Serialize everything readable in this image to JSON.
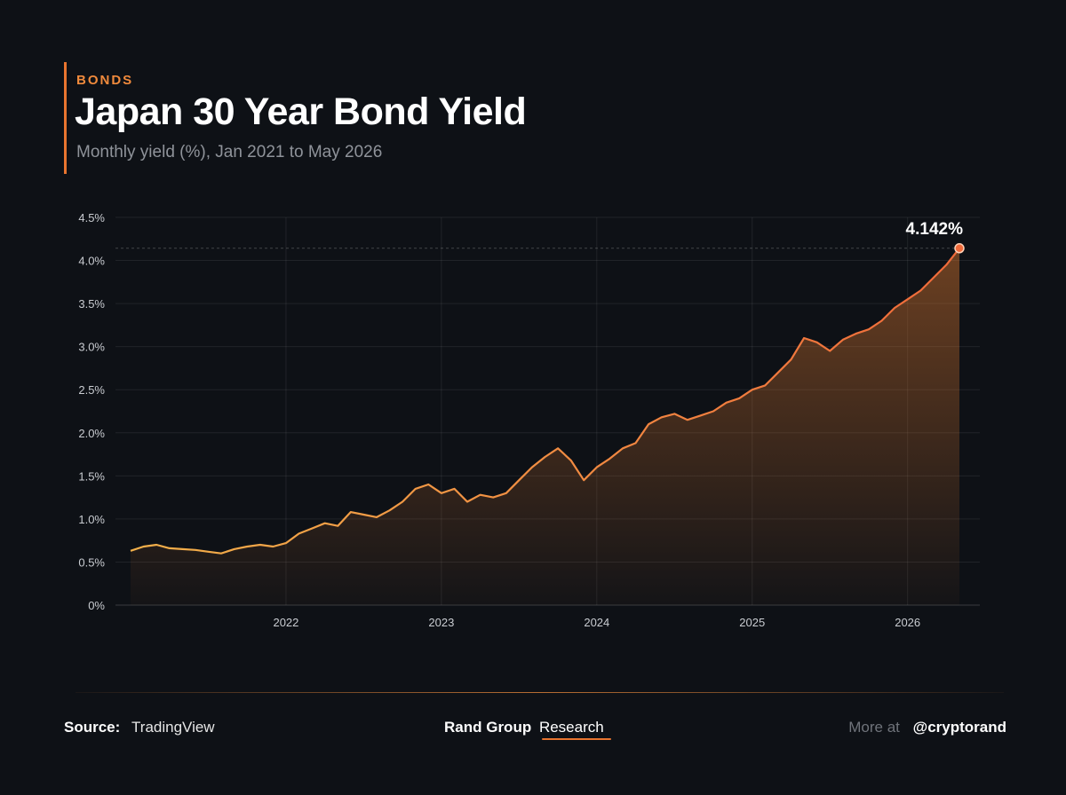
{
  "header": {
    "kicker": "BONDS",
    "title": "Japan 30 Year Bond Yield",
    "subtitle": "Monthly yield (%), Jan 2021 to May 2026"
  },
  "colors": {
    "background": "#0e1116",
    "accent": "#e8742f",
    "line_start": "#f2b04a",
    "line_end": "#f06a3a"
  },
  "chart_data": {
    "type": "area",
    "title": "Japan 30 Year Bond Yield",
    "subtitle": "Monthly yield (%), Jan 2021 to May 2026",
    "xlabel": "",
    "ylabel": "",
    "xlim": [
      "2021-01",
      "2026-05"
    ],
    "ylim": [
      0,
      4.5
    ],
    "y_ticks": [
      "0%",
      "0.5%",
      "1.0%",
      "1.5%",
      "2.0%",
      "2.5%",
      "3.0%",
      "3.5%",
      "4.0%",
      "4.5%"
    ],
    "x_tick_labels": [
      "2022",
      "2023",
      "2024",
      "2025",
      "2026"
    ],
    "grid": true,
    "x": [
      "2021-01",
      "2021-02",
      "2021-03",
      "2021-04",
      "2021-05",
      "2021-06",
      "2021-07",
      "2021-08",
      "2021-09",
      "2021-10",
      "2021-11",
      "2021-12",
      "2022-01",
      "2022-02",
      "2022-03",
      "2022-04",
      "2022-05",
      "2022-06",
      "2022-07",
      "2022-08",
      "2022-09",
      "2022-10",
      "2022-11",
      "2022-12",
      "2023-01",
      "2023-02",
      "2023-03",
      "2023-04",
      "2023-05",
      "2023-06",
      "2023-07",
      "2023-08",
      "2023-09",
      "2023-10",
      "2023-11",
      "2023-12",
      "2024-01",
      "2024-02",
      "2024-03",
      "2024-04",
      "2024-05",
      "2024-06",
      "2024-07",
      "2024-08",
      "2024-09",
      "2024-10",
      "2024-11",
      "2024-12",
      "2025-01",
      "2025-02",
      "2025-03",
      "2025-04",
      "2025-05",
      "2025-06",
      "2025-07",
      "2025-08",
      "2025-09",
      "2025-10",
      "2025-11",
      "2025-12",
      "2026-01",
      "2026-02",
      "2026-03",
      "2026-04",
      "2026-05"
    ],
    "series": [
      {
        "values": [
          0.63,
          0.68,
          0.7,
          0.66,
          0.65,
          0.64,
          0.62,
          0.6,
          0.65,
          0.68,
          0.7,
          0.68,
          0.72,
          0.83,
          0.89,
          0.95,
          0.92,
          1.08,
          1.05,
          1.02,
          1.1,
          1.2,
          1.35,
          1.4,
          1.3,
          1.35,
          1.2,
          1.28,
          1.25,
          1.3,
          1.45,
          1.6,
          1.72,
          1.82,
          1.68,
          1.45,
          1.6,
          1.7,
          1.82,
          1.88,
          2.1,
          2.18,
          2.22,
          2.15,
          2.2,
          2.25,
          2.35,
          2.4,
          2.5,
          2.55,
          2.7,
          2.85,
          3.1,
          3.05,
          2.95,
          3.08,
          3.15,
          3.2,
          3.3,
          3.45,
          3.55,
          3.65,
          3.8,
          3.95,
          4.142
        ]
      }
    ],
    "last_value_label": "4.142%",
    "reference_line": 4.142
  },
  "footer": {
    "source_label": "Source:",
    "source_value": "TradingView",
    "brand_bold": "Rand Group",
    "brand_regular": "Research",
    "more_label": "More at",
    "handle": "@cryptorand"
  }
}
